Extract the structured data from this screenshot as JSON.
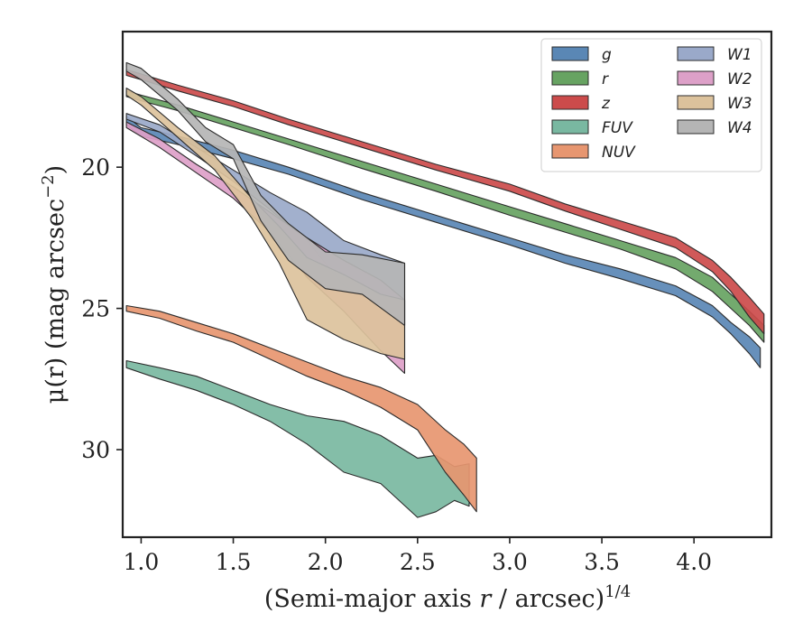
{
  "chart_data": {
    "type": "area",
    "xlabel": "(Semi-major axis r / arcsec)",
    "xlabel_italic": "r",
    "xlabel_exponent": "1/4",
    "ylabel": "μ(r) (mag arcsec",
    "ylabel_exponent": "−2",
    "ylabel_close": ")",
    "xlim": [
      0.9,
      4.42
    ],
    "ylim": [
      33.1,
      15.2
    ],
    "y_inverted": true,
    "xticks": [
      1.0,
      1.5,
      2.0,
      2.5,
      3.0,
      3.5,
      4.0
    ],
    "xtick_labels": [
      "1.0",
      "1.5",
      "2.0",
      "2.5",
      "3.0",
      "3.5",
      "4.0"
    ],
    "yticks": [
      20,
      25,
      30
    ],
    "ytick_labels": [
      "20",
      "25",
      "30"
    ],
    "grid": false,
    "legend_position": "top-right",
    "legend_columns": 2,
    "series": [
      {
        "name": "g",
        "color": "#5a87b5",
        "band": [
          [
            0.92,
            18.2,
            18.5
          ],
          [
            1.0,
            18.6,
            18.9
          ],
          [
            1.2,
            18.9,
            19.2
          ],
          [
            1.5,
            19.4,
            19.7
          ],
          [
            1.8,
            20.0,
            20.25
          ],
          [
            2.2,
            20.9,
            21.15
          ],
          [
            2.6,
            21.7,
            21.95
          ],
          [
            3.0,
            22.5,
            22.75
          ],
          [
            3.3,
            23.1,
            23.4
          ],
          [
            3.6,
            23.6,
            23.95
          ],
          [
            3.9,
            24.2,
            24.55
          ],
          [
            4.1,
            24.9,
            25.3
          ],
          [
            4.2,
            25.5,
            25.9
          ],
          [
            4.3,
            26.0,
            26.6
          ],
          [
            4.36,
            26.4,
            27.1
          ]
        ]
      },
      {
        "name": "r",
        "color": "#67a362",
        "band": [
          [
            0.92,
            17.3,
            17.5
          ],
          [
            1.0,
            17.45,
            17.65
          ],
          [
            1.2,
            17.8,
            18.0
          ],
          [
            1.5,
            18.4,
            18.6
          ],
          [
            1.8,
            19.0,
            19.2
          ],
          [
            2.2,
            19.8,
            20.05
          ],
          [
            2.6,
            20.6,
            20.85
          ],
          [
            3.0,
            21.4,
            21.7
          ],
          [
            3.3,
            22.0,
            22.3
          ],
          [
            3.6,
            22.6,
            22.9
          ],
          [
            3.9,
            23.2,
            23.6
          ],
          [
            4.1,
            23.9,
            24.4
          ],
          [
            4.2,
            24.5,
            25.0
          ],
          [
            4.3,
            25.1,
            25.6
          ],
          [
            4.38,
            25.6,
            26.2
          ]
        ]
      },
      {
        "name": "z",
        "color": "#cc4b4b",
        "band": [
          [
            0.92,
            16.55,
            16.75
          ],
          [
            1.0,
            16.7,
            16.9
          ],
          [
            1.2,
            17.1,
            17.3
          ],
          [
            1.5,
            17.65,
            17.85
          ],
          [
            1.8,
            18.3,
            18.5
          ],
          [
            2.2,
            19.1,
            19.3
          ],
          [
            2.6,
            19.9,
            20.1
          ],
          [
            3.0,
            20.6,
            20.85
          ],
          [
            3.3,
            21.3,
            21.55
          ],
          [
            3.6,
            21.9,
            22.2
          ],
          [
            3.9,
            22.5,
            22.85
          ],
          [
            4.1,
            23.3,
            23.7
          ],
          [
            4.2,
            23.9,
            24.4
          ],
          [
            4.3,
            24.6,
            25.3
          ],
          [
            4.38,
            25.2,
            25.9
          ]
        ]
      },
      {
        "name": "FUV",
        "color": "#79b8a1",
        "band": [
          [
            0.92,
            26.85,
            27.1
          ],
          [
            1.1,
            27.1,
            27.5
          ],
          [
            1.3,
            27.4,
            27.9
          ],
          [
            1.5,
            27.9,
            28.4
          ],
          [
            1.7,
            28.4,
            29.0
          ],
          [
            1.9,
            28.8,
            29.8
          ],
          [
            2.1,
            29.0,
            30.8
          ],
          [
            2.3,
            29.5,
            31.2
          ],
          [
            2.5,
            30.3,
            32.4
          ],
          [
            2.6,
            30.2,
            32.2
          ],
          [
            2.7,
            30.6,
            31.8
          ],
          [
            2.78,
            30.5,
            32.0
          ]
        ]
      },
      {
        "name": "NUV",
        "color": "#e79670",
        "band": [
          [
            0.92,
            24.9,
            25.1
          ],
          [
            1.1,
            25.1,
            25.35
          ],
          [
            1.3,
            25.5,
            25.8
          ],
          [
            1.5,
            25.9,
            26.2
          ],
          [
            1.7,
            26.4,
            26.8
          ],
          [
            1.9,
            26.9,
            27.4
          ],
          [
            2.1,
            27.4,
            27.9
          ],
          [
            2.3,
            27.8,
            28.5
          ],
          [
            2.5,
            28.4,
            29.3
          ],
          [
            2.65,
            29.3,
            30.8
          ],
          [
            2.75,
            29.8,
            31.6
          ],
          [
            2.82,
            30.3,
            32.2
          ]
        ]
      },
      {
        "name": "W1",
        "color": "#9aa9c9",
        "band": [
          [
            0.92,
            18.1,
            18.3
          ],
          [
            1.1,
            18.5,
            18.75
          ],
          [
            1.3,
            19.3,
            19.6
          ],
          [
            1.5,
            20.1,
            20.5
          ],
          [
            1.7,
            20.9,
            21.5
          ],
          [
            1.9,
            21.6,
            22.6
          ],
          [
            2.1,
            22.6,
            24.2
          ],
          [
            2.3,
            23.1,
            24.9
          ],
          [
            2.43,
            23.4,
            25.6
          ]
        ]
      },
      {
        "name": "W2",
        "color": "#dda0c8",
        "band": [
          [
            0.92,
            18.4,
            18.6
          ],
          [
            1.1,
            19.0,
            19.3
          ],
          [
            1.3,
            19.9,
            20.2
          ],
          [
            1.5,
            20.7,
            21.1
          ],
          [
            1.7,
            21.6,
            22.3
          ],
          [
            1.9,
            22.5,
            23.9
          ],
          [
            2.1,
            23.3,
            25.1
          ],
          [
            2.3,
            24.0,
            26.5
          ],
          [
            2.43,
            24.7,
            27.3
          ]
        ]
      },
      {
        "name": "W3",
        "color": "#dcc29c",
        "band": [
          [
            0.92,
            17.2,
            17.45
          ],
          [
            1.0,
            17.5,
            17.8
          ],
          [
            1.2,
            18.6,
            18.95
          ],
          [
            1.4,
            19.6,
            20.1
          ],
          [
            1.6,
            21.1,
            21.8
          ],
          [
            1.75,
            22.1,
            23.4
          ],
          [
            1.9,
            23.2,
            25.4
          ],
          [
            2.1,
            23.8,
            26.1
          ],
          [
            2.3,
            24.5,
            26.6
          ],
          [
            2.43,
            24.7,
            26.8
          ]
        ]
      },
      {
        "name": "W4",
        "color": "#b5b5b5",
        "band": [
          [
            0.92,
            16.3,
            16.6
          ],
          [
            1.0,
            16.5,
            16.9
          ],
          [
            1.2,
            17.6,
            18.0
          ],
          [
            1.35,
            18.6,
            19.1
          ],
          [
            1.5,
            19.2,
            19.7
          ],
          [
            1.65,
            21.0,
            21.9
          ],
          [
            1.8,
            22.0,
            23.3
          ],
          [
            2.0,
            23.0,
            24.3
          ],
          [
            2.2,
            23.1,
            24.5
          ],
          [
            2.43,
            23.4,
            25.6
          ]
        ]
      }
    ]
  }
}
